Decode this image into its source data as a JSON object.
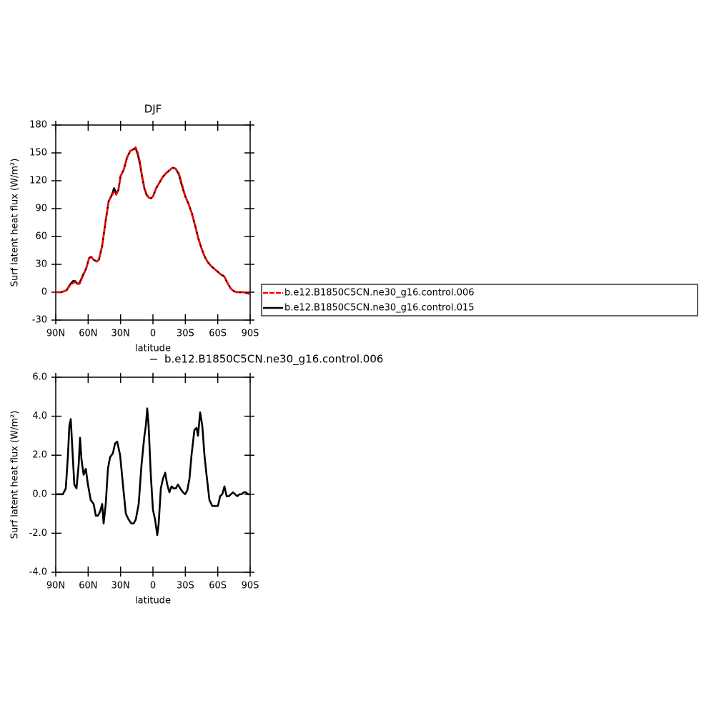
{
  "chart_data": [
    {
      "type": "line",
      "title": "DJF",
      "xlabel": "latitude",
      "ylabel": "Surf latent heat flux (W/m²)",
      "x": [
        90,
        85,
        80,
        77,
        74,
        72,
        70,
        68,
        65,
        62,
        59,
        57,
        55,
        52,
        50,
        47,
        44,
        41,
        38,
        36,
        34,
        32,
        30,
        27,
        24,
        21,
        18,
        16,
        14,
        12,
        10,
        8,
        6,
        4,
        2,
        0,
        -3,
        -6,
        -9,
        -12,
        -15,
        -18,
        -21,
        -24,
        -27,
        -30,
        -33,
        -36,
        -39,
        -42,
        -45,
        -48,
        -51,
        -54,
        -57,
        -60,
        -63,
        -66,
        -69,
        -72,
        -75,
        -78,
        -81,
        -84,
        -87,
        -90
      ],
      "series": [
        {
          "name": "b.e12.B1850C5CN.ne30_g16.control.006",
          "color": "#ff0000",
          "dash": true,
          "values": [
            0,
            0,
            2,
            7,
            10,
            11,
            9,
            9,
            17,
            25,
            37,
            38,
            35,
            33,
            35,
            50,
            75,
            98,
            104,
            108,
            105,
            110,
            125,
            132,
            145,
            152,
            154,
            156,
            150,
            140,
            125,
            113,
            106,
            102,
            101,
            103,
            112,
            118,
            124,
            128,
            131,
            134,
            133,
            128,
            116,
            103,
            95,
            85,
            72,
            58,
            47,
            38,
            32,
            28,
            25,
            22,
            19,
            17,
            10,
            4,
            1,
            0,
            0,
            0,
            -1,
            -2
          ]
        },
        {
          "name": "b.e12.B1850C5CN.ne30_g16.control.015",
          "color": "#000000",
          "dash": false,
          "values": [
            0,
            0,
            2,
            8,
            12,
            12,
            9,
            10,
            18,
            25,
            37,
            38,
            35,
            33,
            35,
            50,
            75,
            98,
            105,
            112,
            106,
            110,
            125,
            132,
            145,
            152,
            154,
            155,
            148,
            138,
            124,
            112,
            105,
            102,
            101,
            103,
            112,
            118,
            124,
            128,
            131,
            134,
            133,
            127,
            114,
            103,
            95,
            85,
            72,
            58,
            47,
            38,
            32,
            28,
            25,
            22,
            19,
            17,
            10,
            4,
            1,
            0,
            0,
            0,
            -1,
            -2
          ]
        }
      ],
      "xlim": [
        90,
        -90
      ],
      "xticks": [
        {
          "value": 90,
          "label": "90N"
        },
        {
          "value": 60,
          "label": "60N"
        },
        {
          "value": 30,
          "label": "30N"
        },
        0,
        {
          "value": -30,
          "label": "30S"
        },
        {
          "value": -60,
          "label": "60S"
        },
        {
          "value": -90,
          "label": "90S"
        }
      ],
      "ylim": [
        -30,
        180
      ],
      "yticks": [
        -30,
        0,
        30,
        60,
        90,
        120,
        150,
        180
      ],
      "legend": "right"
    },
    {
      "type": "line",
      "annotation": "b.e12.B1850C5CN.ne30_g16.control.006",
      "xlabel": "latitude",
      "ylabel": "Surf latent heat flux (W/m²)",
      "x": [
        90,
        83.4,
        80.7,
        78.7,
        77.4,
        76.1,
        74.8,
        72.8,
        70.8,
        68.8,
        67.5,
        66.2,
        64.2,
        62.2,
        60.2,
        57.6,
        54.9,
        52.9,
        51,
        49,
        47,
        45.7,
        43.7,
        41.7,
        39.7,
        37.1,
        35.1,
        33.1,
        30.4,
        27.8,
        25.1,
        22.5,
        19.9,
        17.9,
        15.9,
        13.2,
        10.6,
        7.9,
        6.6,
        5.3,
        4,
        2,
        0,
        -2,
        -4,
        -5.3,
        -7.3,
        -9.3,
        -11.3,
        -13.2,
        -15.2,
        -17.2,
        -19.2,
        -21.2,
        -23.2,
        -25.2,
        -27.8,
        -29.8,
        -31.8,
        -33.8,
        -35.7,
        -38.4,
        -40.4,
        -41.7,
        -43.7,
        -45.7,
        -47.7,
        -49.6,
        -52.3,
        -54.9,
        -57.6,
        -60.2,
        -62.2,
        -64.2,
        -66.2,
        -68.2,
        -70.2,
        -72.2,
        -74.1,
        -76.1,
        -78.1,
        -80.1,
        -82.1,
        -84.1,
        -86,
        -88,
        -90
      ],
      "series": [
        {
          "color": "#000000",
          "dash": false,
          "values": [
            0,
            0,
            0.3,
            2,
            3.5,
            3.85,
            2.5,
            0.5,
            0.3,
            1.5,
            2.9,
            1.8,
            1.0,
            1.3,
            0.5,
            -0.3,
            -0.5,
            -1.1,
            -1.1,
            -0.9,
            -0.5,
            -1.5,
            -0.5,
            1.3,
            1.9,
            2.1,
            2.6,
            2.7,
            2.0,
            0.5,
            -1.0,
            -1.3,
            -1.5,
            -1.5,
            -1.3,
            -0.5,
            1.5,
            3.0,
            3.5,
            4.4,
            3.5,
            1.0,
            -0.8,
            -1.3,
            -2.1,
            -1.5,
            0.3,
            0.8,
            1.1,
            0.5,
            0.1,
            0.4,
            0.3,
            0.3,
            0.5,
            0.3,
            0.1,
            0,
            0.2,
            0.8,
            2.0,
            3.3,
            3.4,
            3.0,
            4.2,
            3.5,
            2.0,
            1.0,
            -0.3,
            -0.6,
            -0.6,
            -0.6,
            -0.1,
            0,
            0.4,
            -0.1,
            -0.1,
            0,
            0.1,
            0,
            -0.1,
            0,
            0,
            0.1,
            0.1,
            0,
            0
          ]
        }
      ],
      "xlim": [
        90,
        -90
      ],
      "xticks": [
        {
          "value": 90,
          "label": "90N"
        },
        {
          "value": 60,
          "label": "60N"
        },
        {
          "value": 30,
          "label": "30N"
        },
        0,
        {
          "value": -30,
          "label": "30S"
        },
        {
          "value": -60,
          "label": "60S"
        },
        {
          "value": -90,
          "label": "90S"
        }
      ],
      "ylim": [
        -4,
        6
      ],
      "yticks": [
        {
          "value": -4,
          "label": "-4.0"
        },
        {
          "value": -2,
          "label": "-2.0"
        },
        {
          "value": 0,
          "label": "0.0"
        },
        {
          "value": 2,
          "label": "2.0"
        },
        {
          "value": 4,
          "label": "4.0"
        },
        {
          "value": 6,
          "label": "6.0"
        }
      ]
    }
  ]
}
